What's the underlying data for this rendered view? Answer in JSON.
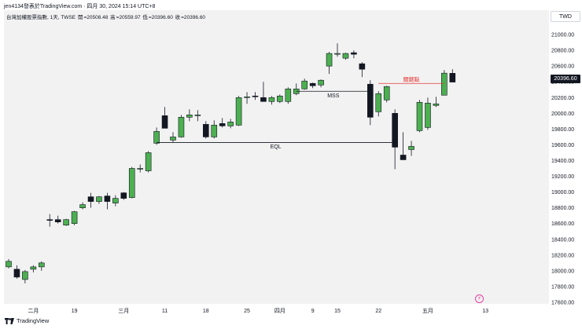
{
  "header": {
    "caption": "jen4134發表於TradingView.com · 四月 30, 2024 15:14 UTC+8"
  },
  "legend": {
    "symbol": "台灣加權股票指數, 1天, TWSE",
    "open_label": "開",
    "open_value": "=20508.48",
    "high_label": "高",
    "high_value": "=20559.97",
    "low_label": "低",
    "low_value": "=20396.60",
    "close_label": "收",
    "close_value": "=20396.60"
  },
  "currency": "TWD",
  "last_price_label": "20396.60",
  "footer": {
    "brand": "TradingView"
  },
  "colors": {
    "up": "#4caf50",
    "down": "#131722",
    "key_level": "#e53935",
    "annotation_line": "#131722",
    "badge_icon": "#e040a0"
  },
  "chart_data": {
    "type": "candlestick",
    "y_axis": {
      "ylim": [
        17550,
        21150
      ],
      "ticks": [
        17600,
        17800,
        18000,
        18200,
        18400,
        18600,
        18800,
        19000,
        19200,
        19400,
        19600,
        19800,
        20000,
        20200,
        20400,
        20600,
        20800,
        21000
      ],
      "tick_labels": [
        "17600.00",
        "17800.00",
        "18000.00",
        "18200.00",
        "18400.00",
        "18600.00",
        "18800.00",
        "19000.00",
        "19200.00",
        "19400.00",
        "19600.00",
        "19800.00",
        "20000.00",
        "20200.00",
        "20400.00",
        "20600.00",
        "20800.00",
        "21000.00"
      ]
    },
    "x_ticks": [
      {
        "label": "二月",
        "index": 3
      },
      {
        "label": "19",
        "index": 8
      },
      {
        "label": "三月",
        "index": 14
      },
      {
        "label": "11",
        "index": 19
      },
      {
        "label": "18",
        "index": 24
      },
      {
        "label": "25",
        "index": 29
      },
      {
        "label": "四月",
        "index": 33
      },
      {
        "label": "9",
        "index": 37
      },
      {
        "label": "15",
        "index": 40
      },
      {
        "label": "22",
        "index": 45
      },
      {
        "label": "五月",
        "index": 51
      },
      {
        "label": "13",
        "index": 58
      }
    ],
    "candles": [
      {
        "open": 18050,
        "high": 18150,
        "low": 18030,
        "close": 18120
      },
      {
        "open": 18020,
        "high": 18070,
        "low": 17900,
        "close": 17920
      },
      {
        "open": 17890,
        "high": 18010,
        "low": 17840,
        "close": 17990
      },
      {
        "open": 18020,
        "high": 18070,
        "low": 17980,
        "close": 18050
      },
      {
        "open": 18050,
        "high": 18120,
        "low": 18000,
        "close": 18100
      },
      {
        "open": 18650,
        "high": 18720,
        "low": 18560,
        "close": 18640
      },
      {
        "open": 18650,
        "high": 18700,
        "low": 18600,
        "close": 18620
      },
      {
        "open": 18580,
        "high": 18660,
        "low": 18570,
        "close": 18650
      },
      {
        "open": 18600,
        "high": 18760,
        "low": 18580,
        "close": 18750
      },
      {
        "open": 18800,
        "high": 18870,
        "low": 18780,
        "close": 18840
      },
      {
        "open": 18940,
        "high": 18990,
        "low": 18800,
        "close": 18880
      },
      {
        "open": 18880,
        "high": 18950,
        "low": 18850,
        "close": 18940
      },
      {
        "open": 18950,
        "high": 18990,
        "low": 18780,
        "close": 18880
      },
      {
        "open": 18860,
        "high": 18960,
        "low": 18820,
        "close": 18920
      },
      {
        "open": 18990,
        "high": 19000,
        "low": 18900,
        "close": 18920
      },
      {
        "open": 18930,
        "high": 19320,
        "low": 18920,
        "close": 19300
      },
      {
        "open": 19300,
        "high": 19350,
        "low": 19250,
        "close": 19300
      },
      {
        "open": 19270,
        "high": 19520,
        "low": 19250,
        "close": 19500
      },
      {
        "open": 19620,
        "high": 19820,
        "low": 19600,
        "close": 19770
      },
      {
        "open": 19970,
        "high": 20080,
        "low": 19810,
        "close": 19810
      },
      {
        "open": 19660,
        "high": 19760,
        "low": 19630,
        "close": 19700
      },
      {
        "open": 19700,
        "high": 19980,
        "low": 19690,
        "close": 19950
      },
      {
        "open": 19950,
        "high": 20050,
        "low": 19900,
        "close": 19980
      },
      {
        "open": 19980,
        "high": 20040,
        "low": 19900,
        "close": 19980
      },
      {
        "open": 19860,
        "high": 19900,
        "low": 19680,
        "close": 19700
      },
      {
        "open": 19700,
        "high": 19910,
        "low": 19680,
        "close": 19850
      },
      {
        "open": 19870,
        "high": 19940,
        "low": 19820,
        "close": 19840
      },
      {
        "open": 19840,
        "high": 19930,
        "low": 19810,
        "close": 19890
      },
      {
        "open": 19850,
        "high": 20220,
        "low": 19840,
        "close": 20200
      },
      {
        "open": 20200,
        "high": 20270,
        "low": 20120,
        "close": 20210
      },
      {
        "open": 20220,
        "high": 20270,
        "low": 20170,
        "close": 20210
      },
      {
        "open": 20200,
        "high": 20400,
        "low": 20150,
        "close": 20150
      },
      {
        "open": 20150,
        "high": 20220,
        "low": 20110,
        "close": 20200
      },
      {
        "open": 20150,
        "high": 20240,
        "low": 20130,
        "close": 20220
      },
      {
        "open": 20150,
        "high": 20330,
        "low": 20120,
        "close": 20310
      },
      {
        "open": 20250,
        "high": 20380,
        "low": 20230,
        "close": 20310
      },
      {
        "open": 20310,
        "high": 20440,
        "low": 20300,
        "close": 20410
      },
      {
        "open": 20380,
        "high": 20390,
        "low": 20320,
        "close": 20350
      },
      {
        "open": 20360,
        "high": 20430,
        "low": 20330,
        "close": 20420
      },
      {
        "open": 20600,
        "high": 20780,
        "low": 20500,
        "close": 20760
      },
      {
        "open": 20760,
        "high": 20890,
        "low": 20720,
        "close": 20760
      },
      {
        "open": 20700,
        "high": 20770,
        "low": 20680,
        "close": 20760
      },
      {
        "open": 20770,
        "high": 20800,
        "low": 20700,
        "close": 20750
      },
      {
        "open": 20630,
        "high": 20650,
        "low": 20460,
        "close": 20560
      },
      {
        "open": 20370,
        "high": 20420,
        "low": 19850,
        "close": 19950
      },
      {
        "open": 20020,
        "high": 20280,
        "low": 19960,
        "close": 20250
      },
      {
        "open": 20170,
        "high": 20350,
        "low": 20140,
        "close": 20340
      },
      {
        "open": 20000,
        "high": 20050,
        "low": 19290,
        "close": 19570
      },
      {
        "open": 19470,
        "high": 19760,
        "low": 19410,
        "close": 19410
      },
      {
        "open": 19540,
        "high": 19650,
        "low": 19460,
        "close": 19580
      },
      {
        "open": 19780,
        "high": 20170,
        "low": 19760,
        "close": 20140
      },
      {
        "open": 19820,
        "high": 20200,
        "low": 19790,
        "close": 20130
      },
      {
        "open": 20100,
        "high": 20210,
        "low": 20080,
        "close": 20120
      },
      {
        "open": 20230,
        "high": 20550,
        "low": 20230,
        "close": 20510
      },
      {
        "open": 20508.48,
        "high": 20559.97,
        "low": 20396.6,
        "close": 20396.6
      }
    ],
    "annotations": [
      {
        "label": "EQL",
        "level": 19630,
        "from_index": 18,
        "to_index": 47,
        "color": "#131722"
      },
      {
        "label": "MSS",
        "level": 20280,
        "from_index": 35,
        "to_index": 44,
        "color": "#131722"
      },
      {
        "label": "關鍵點",
        "level": 20380,
        "from_index": 45,
        "to_index": 53,
        "color": "#e53935"
      }
    ]
  }
}
